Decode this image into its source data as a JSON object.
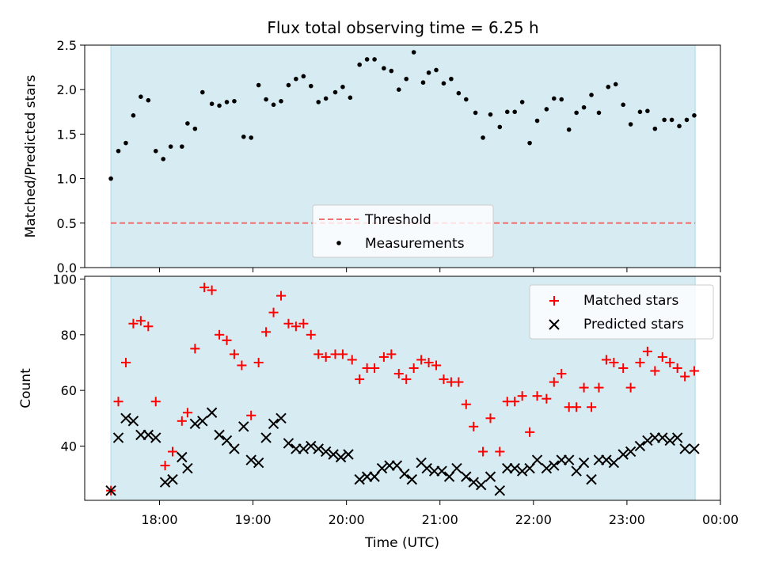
{
  "title": "Flux total observing time = 6.25 h",
  "colors": {
    "background": "#ffffff",
    "shading": "#add8e6",
    "threshold": "#f07070",
    "measurements": "#000000",
    "matched": "#ff0000",
    "predicted": "#000000"
  },
  "chart_data": [
    {
      "type": "scatter",
      "x_axis": "time (UTC, hours)",
      "ylabel": "Matched/Predicted stars",
      "ylim": [
        0,
        2.5
      ],
      "yticks": [
        0.0,
        0.5,
        1.0,
        1.5,
        2.0,
        2.5
      ],
      "ytick_labels": [
        "0.0",
        "0.5",
        "1.0",
        "1.5",
        "2.0",
        "2.5"
      ],
      "xlim": [
        17.2,
        24.0
      ],
      "shaded_span": [
        17.48,
        23.73
      ],
      "legend": {
        "placement": "lower center",
        "entries": [
          "Threshold",
          "Measurements"
        ]
      },
      "threshold": {
        "name": "Threshold",
        "value": 0.5,
        "style": "dashed"
      },
      "series": [
        {
          "name": "Measurements",
          "marker": "dot",
          "x": [
            17.48,
            17.56,
            17.64,
            17.72,
            17.8,
            17.88,
            17.96,
            18.04,
            18.12,
            18.24,
            18.3,
            18.38,
            18.46,
            18.56,
            18.64,
            18.72,
            18.8,
            18.9,
            18.98,
            19.06,
            19.14,
            19.22,
            19.3,
            19.38,
            19.46,
            19.54,
            19.62,
            19.7,
            19.78,
            19.88,
            19.96,
            20.04,
            20.14,
            20.22,
            20.3,
            20.4,
            20.48,
            20.56,
            20.64,
            20.72,
            20.82,
            20.88,
            20.96,
            21.04,
            21.12,
            21.2,
            21.28,
            21.38,
            21.46,
            21.54,
            21.64,
            21.72,
            21.8,
            21.88,
            21.96,
            22.04,
            22.14,
            22.22,
            22.3,
            22.38,
            22.46,
            22.54,
            22.62,
            22.7,
            22.8,
            22.88,
            22.96,
            23.04,
            23.14,
            23.22,
            23.3,
            23.4,
            23.48,
            23.56,
            23.64,
            23.72
          ],
          "y": [
            1.0,
            1.31,
            1.4,
            1.71,
            1.92,
            1.88,
            1.31,
            1.22,
            1.36,
            1.36,
            1.62,
            1.56,
            1.97,
            1.84,
            1.82,
            1.86,
            1.87,
            1.47,
            1.46,
            2.05,
            1.89,
            1.83,
            1.87,
            2.05,
            2.12,
            2.15,
            2.04,
            1.86,
            1.9,
            1.97,
            2.03,
            1.91,
            2.28,
            2.34,
            2.34,
            2.24,
            2.21,
            2.0,
            2.12,
            2.42,
            2.08,
            2.19,
            2.22,
            2.07,
            2.12,
            1.96,
            1.89,
            1.74,
            1.46,
            1.72,
            1.58,
            1.75,
            1.75,
            1.86,
            1.4,
            1.65,
            1.78,
            1.9,
            1.89,
            1.55,
            1.74,
            1.8,
            1.94,
            1.74,
            2.03,
            2.06,
            1.83,
            1.61,
            1.75,
            1.76,
            1.56,
            1.66,
            1.66,
            1.59,
            1.66,
            1.71
          ]
        }
      ]
    },
    {
      "type": "scatter",
      "ylabel": "Count",
      "xlabel": "Time (UTC)",
      "xlim": [
        17.2,
        24.0
      ],
      "ylim": [
        20.5,
        101
      ],
      "yticks": [
        40,
        60,
        80,
        100
      ],
      "ytick_labels": [
        "40",
        "60",
        "80",
        "100"
      ],
      "xticks": [
        18,
        19,
        20,
        21,
        22,
        23,
        24
      ],
      "xtick_labels": [
        "18:00",
        "19:00",
        "20:00",
        "21:00",
        "22:00",
        "23:00",
        "00:00"
      ],
      "shaded_span": [
        17.48,
        23.73
      ],
      "legend": {
        "placement": "upper right",
        "entries": [
          "Matched stars",
          "Predicted stars"
        ]
      },
      "series": [
        {
          "name": "Matched stars",
          "marker": "+",
          "x": [
            17.48,
            17.56,
            17.64,
            17.72,
            17.8,
            17.88,
            17.96,
            18.06,
            18.14,
            18.24,
            18.3,
            18.38,
            18.48,
            18.56,
            18.64,
            18.72,
            18.8,
            18.88,
            18.98,
            19.06,
            19.14,
            19.22,
            19.3,
            19.38,
            19.46,
            19.54,
            19.62,
            19.7,
            19.78,
            19.88,
            19.96,
            20.06,
            20.14,
            20.22,
            20.3,
            20.4,
            20.48,
            20.56,
            20.64,
            20.72,
            20.8,
            20.88,
            20.96,
            21.04,
            21.12,
            21.2,
            21.28,
            21.36,
            21.46,
            21.54,
            21.64,
            21.72,
            21.8,
            21.88,
            21.96,
            22.04,
            22.14,
            22.22,
            22.3,
            22.38,
            22.46,
            22.54,
            22.62,
            22.7,
            22.78,
            22.86,
            22.96,
            23.04,
            23.14,
            23.22,
            23.3,
            23.38,
            23.46,
            23.54,
            23.62,
            23.72
          ],
          "y": [
            24,
            56,
            70,
            84,
            85,
            83,
            56,
            33,
            38,
            49,
            52,
            75,
            97,
            96,
            80,
            78,
            73,
            69,
            51,
            70,
            81,
            88,
            94,
            84,
            83,
            84,
            80,
            73,
            72,
            73,
            73,
            71,
            64,
            68,
            68,
            72,
            73,
            66,
            64,
            68,
            71,
            70,
            69,
            64,
            63,
            63,
            55,
            47,
            38,
            50,
            38,
            56,
            56,
            58,
            45,
            58,
            57,
            63,
            66,
            54,
            54,
            61,
            54,
            61,
            71,
            70,
            68,
            61,
            70,
            74,
            67,
            72,
            70,
            68,
            65,
            67
          ]
        },
        {
          "name": "Predicted stars",
          "marker": "x",
          "x": [
            17.48,
            17.56,
            17.64,
            17.72,
            17.8,
            17.88,
            17.96,
            18.06,
            18.14,
            18.24,
            18.3,
            18.38,
            18.46,
            18.56,
            18.64,
            18.72,
            18.8,
            18.9,
            18.98,
            19.06,
            19.14,
            19.22,
            19.3,
            19.38,
            19.46,
            19.54,
            19.62,
            19.7,
            19.78,
            19.86,
            19.94,
            20.02,
            20.14,
            20.22,
            20.3,
            20.38,
            20.46,
            20.54,
            20.62,
            20.7,
            20.8,
            20.86,
            20.94,
            21.02,
            21.1,
            21.18,
            21.28,
            21.36,
            21.44,
            21.54,
            21.64,
            21.72,
            21.8,
            21.88,
            21.96,
            22.04,
            22.14,
            22.22,
            22.3,
            22.38,
            22.46,
            22.54,
            22.62,
            22.7,
            22.78,
            22.86,
            22.96,
            23.04,
            23.14,
            23.22,
            23.3,
            23.38,
            23.46,
            23.54,
            23.62,
            23.72
          ],
          "y": [
            24,
            43,
            50,
            49,
            44,
            44,
            43,
            27,
            28,
            36,
            32,
            48,
            49,
            52,
            44,
            42,
            39,
            47,
            35,
            34,
            43,
            48,
            50,
            41,
            39,
            39,
            40,
            39,
            38,
            37,
            36,
            37,
            28,
            29,
            29,
            32,
            33,
            33,
            30,
            28,
            34,
            32,
            31,
            31,
            29,
            32,
            29,
            27,
            26,
            29,
            24,
            32,
            32,
            31,
            32,
            35,
            32,
            33,
            35,
            35,
            31,
            34,
            28,
            35,
            35,
            34,
            37,
            38,
            40,
            42,
            43,
            43,
            42,
            43,
            39,
            39
          ]
        }
      ]
    }
  ]
}
